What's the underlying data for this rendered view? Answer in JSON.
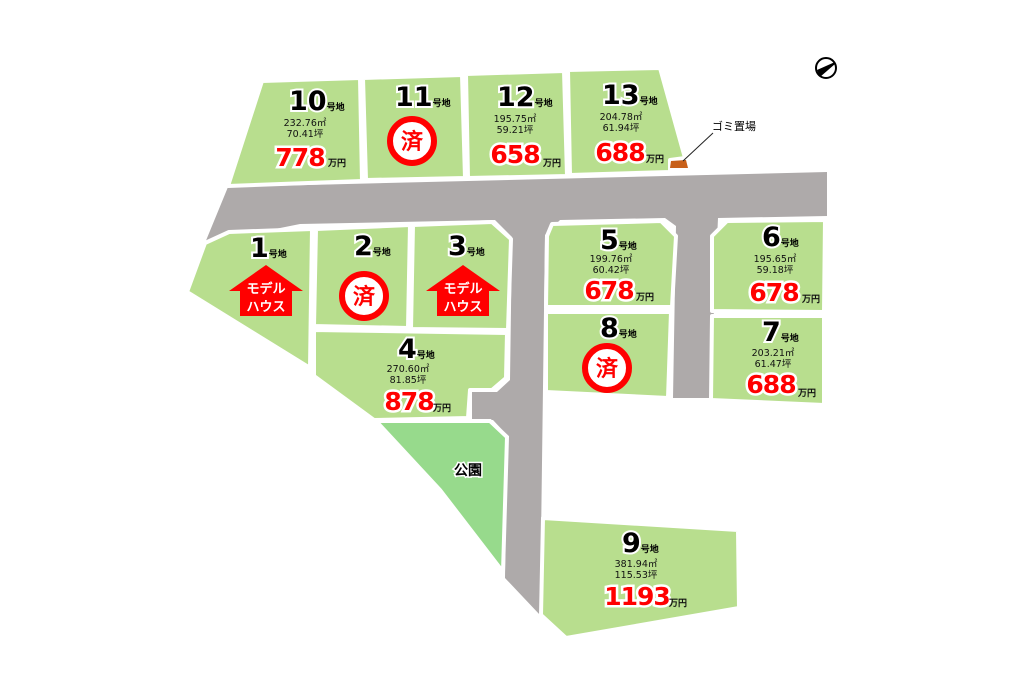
{
  "colors": {
    "lot": "#b8de8e",
    "park": "#97da8c",
    "road": "#aeaaaa",
    "price": "#ff0000",
    "sold": "#ff0000",
    "model_house": "#ff0000",
    "garbage": "#c8601a"
  },
  "labels": {
    "lot_suffix": "号地",
    "price_unit": "万円",
    "sold": "済",
    "model_house_line1": "モデル",
    "model_house_line2": "ハウス",
    "park": "公園",
    "garbage": "ゴミ置場"
  },
  "compass_icon": "north-arrow-icon",
  "lots": [
    {
      "number": "1",
      "status": "model_house"
    },
    {
      "number": "2",
      "status": "sold"
    },
    {
      "number": "3",
      "status": "model_house"
    },
    {
      "number": "4",
      "status": "available",
      "area": "270.60㎡",
      "tsubo": "81.85坪",
      "price": "878"
    },
    {
      "number": "5",
      "status": "available",
      "area": "199.76㎡",
      "tsubo": "60.42坪",
      "price": "678"
    },
    {
      "number": "6",
      "status": "available",
      "area": "195.65㎡",
      "tsubo": "59.18坪",
      "price": "678"
    },
    {
      "number": "7",
      "status": "available",
      "area": "203.21㎡",
      "tsubo": "61.47坪",
      "price": "688"
    },
    {
      "number": "8",
      "status": "sold"
    },
    {
      "number": "9",
      "status": "available",
      "area": "381.94㎡",
      "tsubo": "115.53坪",
      "price": "1193"
    },
    {
      "number": "10",
      "status": "available",
      "area": "232.76㎡",
      "tsubo": "70.41坪",
      "price": "778"
    },
    {
      "number": "11",
      "status": "sold"
    },
    {
      "number": "12",
      "status": "available",
      "area": "195.75㎡",
      "tsubo": "59.21坪",
      "price": "658"
    },
    {
      "number": "13",
      "status": "available",
      "area": "204.78㎡",
      "tsubo": "61.94坪",
      "price": "688"
    }
  ]
}
